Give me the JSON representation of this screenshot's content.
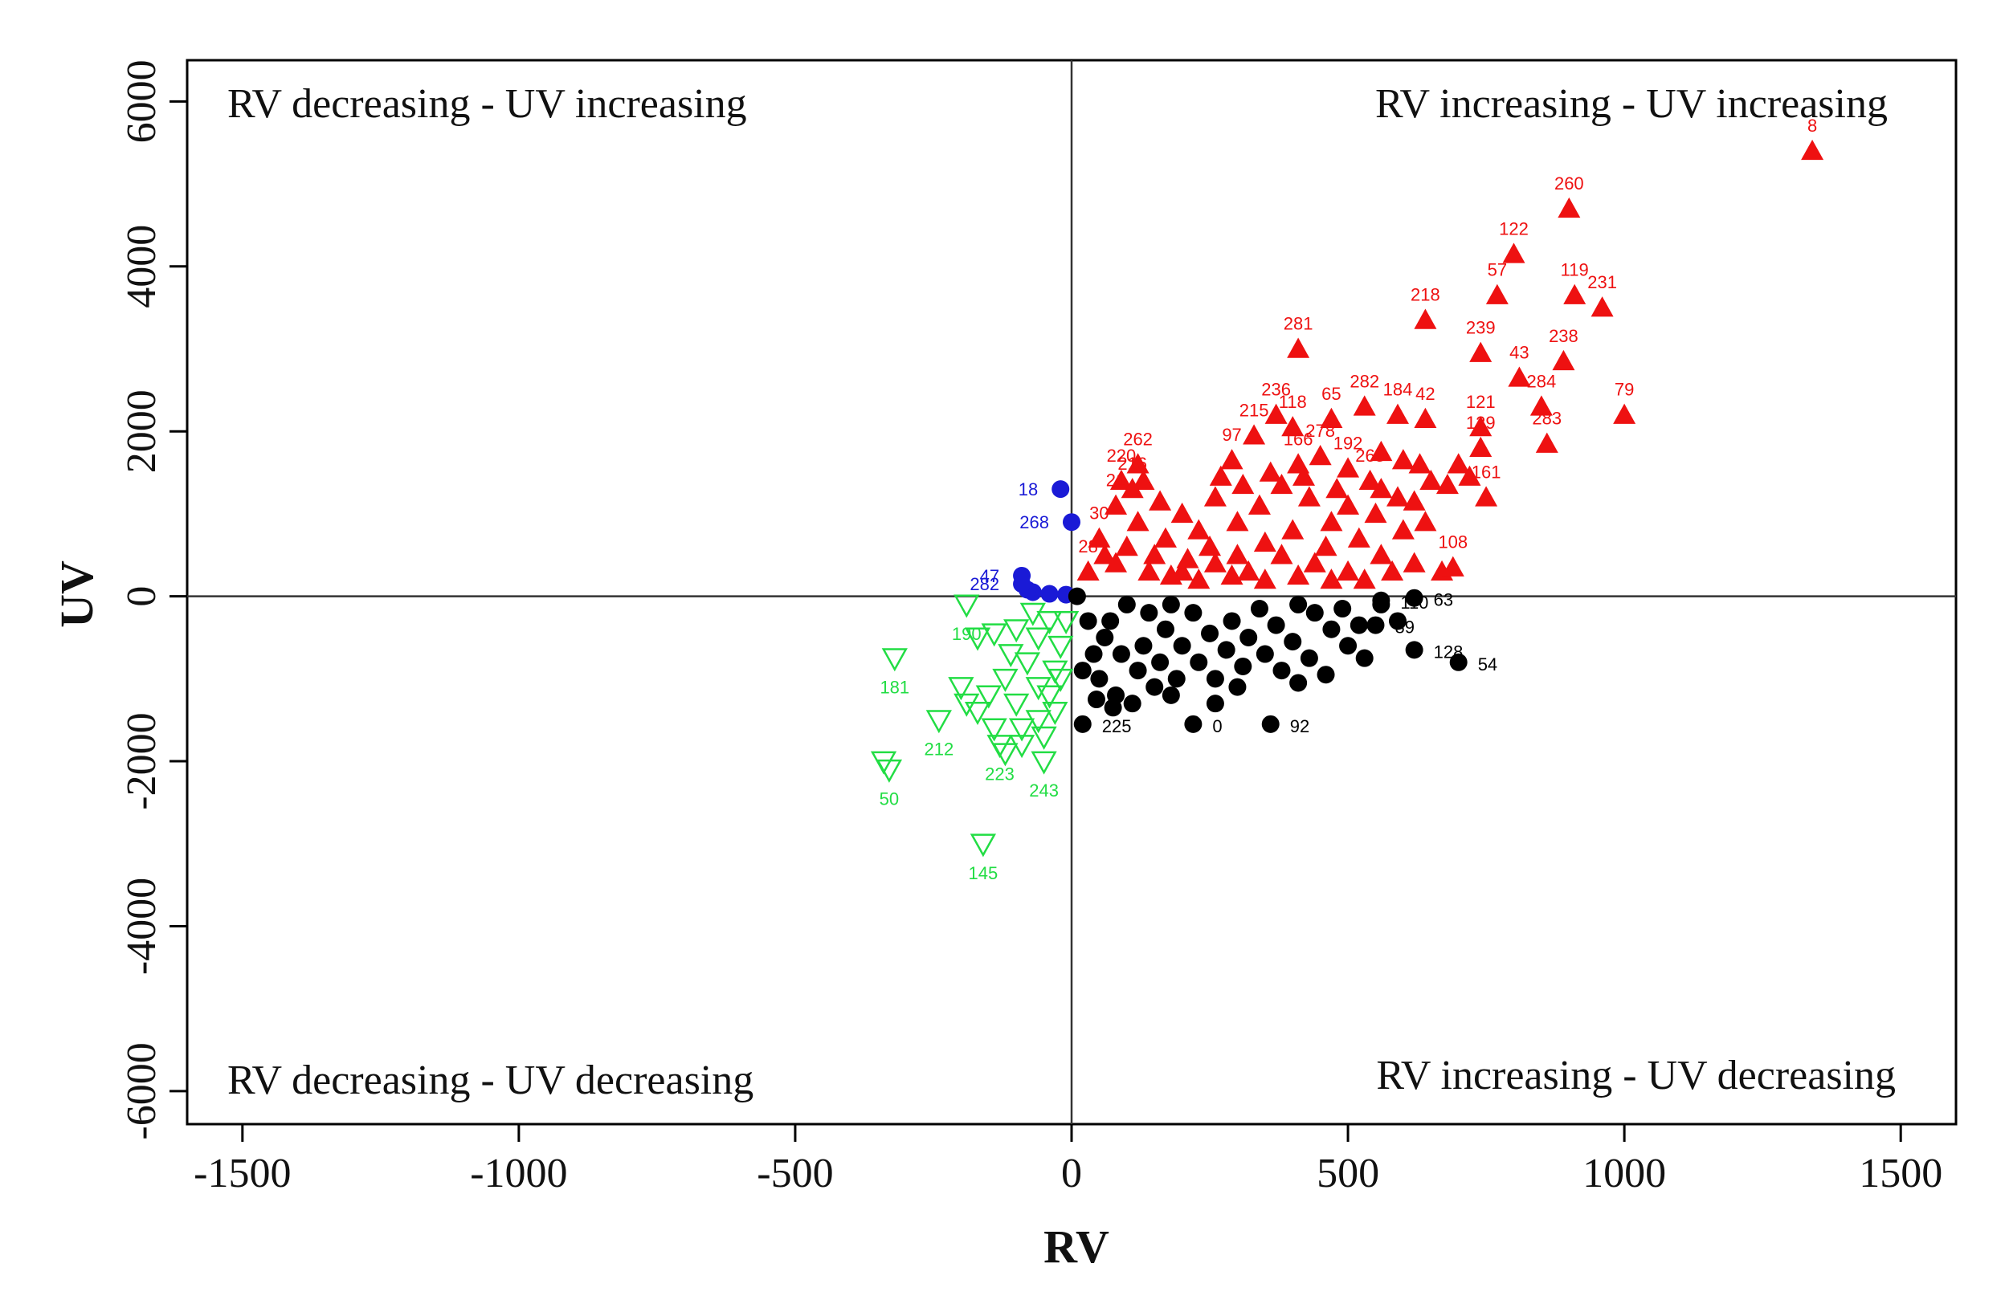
{
  "chart_data": {
    "type": "scatter",
    "title": "",
    "xlabel": "RV",
    "ylabel": "UV",
    "xlim": [
      -1600,
      1600
    ],
    "ylim": [
      -6400,
      6500
    ],
    "xticks": [
      -1500,
      -1000,
      -500,
      0,
      500,
      1000,
      1500
    ],
    "yticks": [
      -6000,
      -4000,
      -2000,
      0,
      2000,
      4000,
      6000
    ],
    "grid": false,
    "reference_lines": {
      "x": 0,
      "y": 0
    },
    "quadrant_labels": {
      "top_left": "RV decreasing - UV increasing",
      "top_right": "RV increasing - UV increasing",
      "bottom_left": "RV decreasing - UV decreasing",
      "bottom_right": "RV increasing - UV decreasing"
    },
    "colors": {
      "increasing_increasing": "#ee1111",
      "decreasing_increasing": "#1a1ad6",
      "decreasing_decreasing": "#22dd44",
      "increasing_decreasing": "#000000"
    },
    "series": [
      {
        "quadrant": "RV increasing - UV increasing",
        "marker": "filled-triangle-up",
        "color": "#ee1111",
        "points": [
          {
            "x": 1340,
            "y": 5400,
            "label": "8"
          },
          {
            "x": 900,
            "y": 4700,
            "label": "260"
          },
          {
            "x": 800,
            "y": 4150,
            "label": "122"
          },
          {
            "x": 770,
            "y": 3650,
            "label": "57"
          },
          {
            "x": 910,
            "y": 3650,
            "label": "119"
          },
          {
            "x": 960,
            "y": 3500,
            "label": "231"
          },
          {
            "x": 640,
            "y": 3350,
            "label": "218"
          },
          {
            "x": 410,
            "y": 3000,
            "label": "281"
          },
          {
            "x": 740,
            "y": 2950,
            "label": "239"
          },
          {
            "x": 890,
            "y": 2850,
            "label": "238"
          },
          {
            "x": 810,
            "y": 2650,
            "label": "43"
          },
          {
            "x": 850,
            "y": 2300,
            "label": "284"
          },
          {
            "x": 1000,
            "y": 2200,
            "label": "79"
          },
          {
            "x": 860,
            "y": 1850,
            "label": "283"
          },
          {
            "x": 740,
            "y": 2050,
            "label": "121"
          },
          {
            "x": 740,
            "y": 1800,
            "label": "129"
          },
          {
            "x": 750,
            "y": 1200,
            "label": "161"
          },
          {
            "x": 590,
            "y": 2200,
            "label": "184"
          },
          {
            "x": 530,
            "y": 2300,
            "label": "282"
          },
          {
            "x": 470,
            "y": 2150,
            "label": "65"
          },
          {
            "x": 370,
            "y": 2200,
            "label": "236"
          },
          {
            "x": 400,
            "y": 2050,
            "label": "118"
          },
          {
            "x": 330,
            "y": 1950,
            "label": "215"
          },
          {
            "x": 290,
            "y": 1650,
            "label": "97"
          },
          {
            "x": 120,
            "y": 1600,
            "label": "262"
          },
          {
            "x": 90,
            "y": 1400,
            "label": "220"
          },
          {
            "x": 110,
            "y": 1300,
            "label": "216"
          },
          {
            "x": 80,
            "y": 1100,
            "label": "21"
          },
          {
            "x": 50,
            "y": 700,
            "label": "30"
          },
          {
            "x": 30,
            "y": 300,
            "label": "28"
          },
          {
            "x": 640,
            "y": 2150,
            "label": "42"
          },
          {
            "x": 500,
            "y": 1550,
            "label": "192"
          },
          {
            "x": 410,
            "y": 1600,
            "label": "166"
          },
          {
            "x": 450,
            "y": 1700,
            "label": "278"
          },
          {
            "x": 540,
            "y": 1400,
            "label": "265"
          },
          {
            "x": 690,
            "y": 350,
            "label": "108"
          }
        ],
        "extra_unlabeled": [
          [
            560,
            1750
          ],
          [
            600,
            1650
          ],
          [
            630,
            1600
          ],
          [
            650,
            1400
          ],
          [
            700,
            1600
          ],
          [
            680,
            1350
          ],
          [
            720,
            1450
          ],
          [
            560,
            1300
          ],
          [
            620,
            1150
          ],
          [
            500,
            1100
          ],
          [
            470,
            900
          ],
          [
            430,
            1200
          ],
          [
            380,
            1350
          ],
          [
            340,
            1100
          ],
          [
            300,
            900
          ],
          [
            260,
            1200
          ],
          [
            230,
            800
          ],
          [
            200,
            1000
          ],
          [
            170,
            700
          ],
          [
            150,
            500
          ],
          [
            120,
            900
          ],
          [
            100,
            600
          ],
          [
            80,
            400
          ],
          [
            140,
            300
          ],
          [
            200,
            300
          ],
          [
            260,
            400
          ],
          [
            320,
            300
          ],
          [
            380,
            500
          ],
          [
            440,
            400
          ],
          [
            500,
            300
          ],
          [
            560,
            500
          ],
          [
            600,
            800
          ],
          [
            640,
            900
          ],
          [
            520,
            700
          ],
          [
            460,
            600
          ],
          [
            400,
            800
          ],
          [
            350,
            650
          ],
          [
            300,
            500
          ],
          [
            250,
            600
          ],
          [
            210,
            450
          ],
          [
            180,
            250
          ],
          [
            230,
            200
          ],
          [
            290,
            250
          ],
          [
            350,
            200
          ],
          [
            410,
            250
          ],
          [
            470,
            200
          ],
          [
            530,
            200
          ],
          [
            580,
            300
          ],
          [
            620,
            400
          ],
          [
            670,
            300
          ],
          [
            550,
            1000
          ],
          [
            590,
            1200
          ],
          [
            480,
            1300
          ],
          [
            420,
            1450
          ],
          [
            360,
            1500
          ],
          [
            310,
            1350
          ],
          [
            270,
            1450
          ],
          [
            160,
            1150
          ],
          [
            130,
            1400
          ],
          [
            60,
            500
          ]
        ]
      },
      {
        "quadrant": "RV decreasing - UV increasing",
        "marker": "filled-circle",
        "color": "#1a1ad6",
        "points": [
          {
            "x": -20,
            "y": 1300,
            "label": "18"
          },
          {
            "x": 0,
            "y": 900,
            "label": "268"
          },
          {
            "x": -90,
            "y": 250,
            "label": "47"
          },
          {
            "x": -90,
            "y": 150,
            "label": "282"
          }
        ],
        "extra_unlabeled": [
          [
            -70,
            50
          ],
          [
            -40,
            30
          ],
          [
            -10,
            20
          ],
          [
            -80,
            80
          ]
        ]
      },
      {
        "quadrant": "RV decreasing - UV decreasing",
        "marker": "open-triangle-down",
        "color": "#22dd44",
        "points": [
          {
            "x": -320,
            "y": -750,
            "label": "181"
          },
          {
            "x": -240,
            "y": -1500,
            "label": "212"
          },
          {
            "x": -130,
            "y": -1800,
            "label": "223"
          },
          {
            "x": -50,
            "y": -2000,
            "label": "243"
          },
          {
            "x": -330,
            "y": -2100,
            "label": "50"
          },
          {
            "x": -160,
            "y": -3000,
            "label": "145"
          },
          {
            "x": -190,
            "y": -100,
            "label": "190"
          }
        ],
        "extra_unlabeled": [
          [
            -340,
            -2000
          ],
          [
            -200,
            -1100
          ],
          [
            -170,
            -1400
          ],
          [
            -140,
            -1600
          ],
          [
            -100,
            -1300
          ],
          [
            -90,
            -1800
          ],
          [
            -60,
            -1500
          ],
          [
            -40,
            -1200
          ],
          [
            -30,
            -900
          ],
          [
            -20,
            -600
          ],
          [
            -60,
            -500
          ],
          [
            -100,
            -400
          ],
          [
            -140,
            -450
          ],
          [
            -170,
            -500
          ],
          [
            -80,
            -800
          ],
          [
            -120,
            -1000
          ],
          [
            -50,
            -1700
          ],
          [
            -30,
            -1400
          ],
          [
            -10,
            -300
          ],
          [
            -70,
            -200
          ],
          [
            -110,
            -700
          ],
          [
            -150,
            -1200
          ],
          [
            -190,
            -1300
          ],
          [
            -20,
            -1000
          ],
          [
            -40,
            -300
          ],
          [
            -90,
            -1600
          ],
          [
            -120,
            -1900
          ],
          [
            -60,
            -1100
          ]
        ]
      },
      {
        "quadrant": "RV increasing - UV decreasing",
        "marker": "filled-circle",
        "color": "#000000",
        "points": [
          {
            "x": 700,
            "y": -800,
            "label": "54"
          },
          {
            "x": 620,
            "y": -650,
            "label": "128"
          },
          {
            "x": 360,
            "y": -1550,
            "label": "92"
          },
          {
            "x": 220,
            "y": -1550,
            "label": "0"
          },
          {
            "x": 20,
            "y": -1550,
            "label": "225"
          },
          {
            "x": 620,
            "y": -20,
            "label": "63"
          },
          {
            "x": 550,
            "y": -350,
            "label": "89"
          },
          {
            "x": 560,
            "y": -50,
            "label": "110"
          }
        ],
        "extra_unlabeled": [
          [
            10,
            0
          ],
          [
            30,
            -300
          ],
          [
            60,
            -500
          ],
          [
            90,
            -700
          ],
          [
            120,
            -900
          ],
          [
            150,
            -1100
          ],
          [
            180,
            -1200
          ],
          [
            50,
            -1000
          ],
          [
            80,
            -1200
          ],
          [
            110,
            -1300
          ],
          [
            140,
            -200
          ],
          [
            170,
            -400
          ],
          [
            200,
            -600
          ],
          [
            230,
            -800
          ],
          [
            260,
            -1000
          ],
          [
            290,
            -300
          ],
          [
            320,
            -500
          ],
          [
            350,
            -700
          ],
          [
            380,
            -900
          ],
          [
            410,
            -1050
          ],
          [
            440,
            -200
          ],
          [
            470,
            -400
          ],
          [
            500,
            -600
          ],
          [
            530,
            -750
          ],
          [
            560,
            -100
          ],
          [
            590,
            -300
          ],
          [
            40,
            -700
          ],
          [
            70,
            -300
          ],
          [
            100,
            -100
          ],
          [
            130,
            -600
          ],
          [
            160,
            -800
          ],
          [
            190,
            -1000
          ],
          [
            220,
            -200
          ],
          [
            250,
            -450
          ],
          [
            280,
            -650
          ],
          [
            310,
            -850
          ],
          [
            340,
            -150
          ],
          [
            370,
            -350
          ],
          [
            400,
            -550
          ],
          [
            430,
            -750
          ],
          [
            460,
            -950
          ],
          [
            490,
            -150
          ],
          [
            520,
            -350
          ],
          [
            20,
            -900
          ],
          [
            45,
            -1250
          ],
          [
            75,
            -1350
          ],
          [
            260,
            -1300
          ],
          [
            300,
            -1100
          ],
          [
            180,
            -100
          ],
          [
            410,
            -100
          ]
        ]
      }
    ]
  }
}
